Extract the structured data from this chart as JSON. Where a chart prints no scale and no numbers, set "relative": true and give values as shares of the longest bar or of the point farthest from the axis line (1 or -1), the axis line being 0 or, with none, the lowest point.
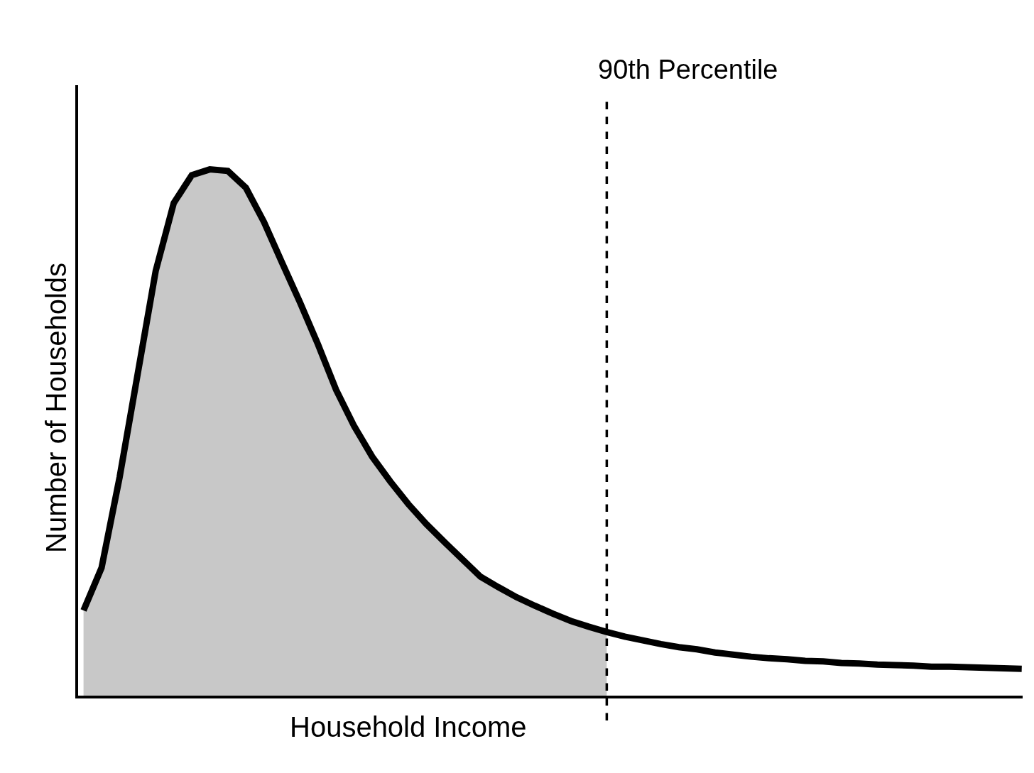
{
  "chart_data": {
    "type": "line",
    "relative": true,
    "xlabel": "Household Income",
    "ylabel": "Number of Households",
    "categories": [
      null,
      null,
      null,
      null,
      null,
      null,
      null,
      null,
      null,
      null,
      null,
      null,
      null,
      null,
      null,
      null,
      null,
      null,
      null,
      null,
      null,
      null,
      null,
      null,
      null,
      null,
      null,
      null,
      null,
      null,
      null,
      null,
      null,
      null,
      null,
      null,
      null,
      null,
      null,
      null,
      null,
      null,
      null,
      null,
      null,
      null,
      null,
      null,
      null,
      null,
      null,
      null,
      null
    ],
    "series": [
      {
        "type": "area",
        "color": "#c8c8c8",
        "values": [
          0.162,
          0.243,
          0.415,
          0.611,
          0.807,
          0.936,
          0.989,
          1.0,
          0.997,
          0.965,
          0.9,
          0.823,
          0.747,
          0.667,
          0.581,
          0.512,
          0.454,
          0.407,
          0.364,
          0.326,
          0.292,
          0.259,
          0.226,
          0.206,
          0.187,
          0.171,
          0.156,
          0.142,
          0.131,
          0.121,
          null,
          null,
          null,
          null,
          null,
          null,
          null,
          null,
          null,
          null,
          null,
          null,
          null,
          null,
          null,
          null,
          null,
          null,
          null,
          null,
          null,
          null,
          null
        ]
      },
      {
        "color": "#000000",
        "values": [
          0.162,
          0.243,
          0.415,
          0.611,
          0.807,
          0.936,
          0.989,
          1.0,
          0.997,
          0.965,
          0.9,
          0.823,
          0.747,
          0.667,
          0.581,
          0.512,
          0.454,
          0.407,
          0.364,
          0.326,
          0.292,
          0.259,
          0.226,
          0.206,
          0.187,
          0.171,
          0.156,
          0.142,
          0.131,
          0.121,
          0.112,
          0.105,
          0.098,
          0.092,
          0.088,
          0.082,
          0.078,
          0.074,
          0.071,
          0.069,
          0.066,
          0.065,
          0.062,
          0.061,
          0.059,
          0.058,
          0.057,
          0.055,
          0.055,
          0.054,
          0.053,
          0.052,
          0.051
        ]
      }
    ],
    "annotations": [
      "90th Percentile"
    ]
  }
}
